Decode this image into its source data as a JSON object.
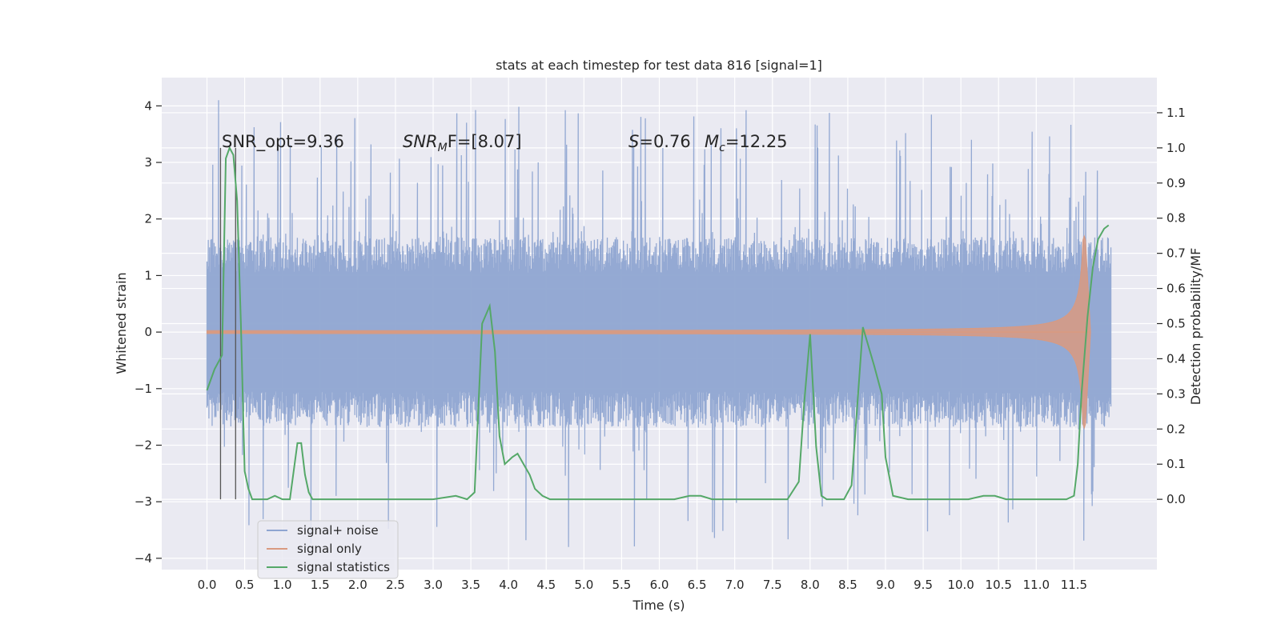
{
  "chart_data": {
    "type": "line",
    "title": "stats at each timestep for test data 816 [signal=1]",
    "xlabel": "Time (s)",
    "ylabel": "Whitened strain",
    "ylabel_right": "Detection probability/MF",
    "xlim": [
      -0.6,
      12.6
    ],
    "ylim": [
      -4.2,
      4.5
    ],
    "ylim_right": [
      -0.2,
      1.2
    ],
    "x_ticks": [
      0.0,
      0.5,
      1.0,
      1.5,
      2.0,
      2.5,
      3.0,
      3.5,
      4.0,
      4.5,
      5.0,
      5.5,
      6.0,
      6.5,
      7.0,
      7.5,
      8.0,
      8.5,
      9.0,
      9.5,
      10.0,
      10.5,
      11.0,
      11.5
    ],
    "x_tick_labels": [
      "0.0",
      "0.5",
      "1.0",
      "1.5",
      "2.0",
      "2.5",
      "3.0",
      "3.5",
      "4.0",
      "4.5",
      "5.0",
      "5.5",
      "6.0",
      "6.5",
      "7.0",
      "7.5",
      "8.0",
      "8.5",
      "9.0",
      "9.5",
      "10.0",
      "10.5",
      "11.0",
      "11.5"
    ],
    "y_ticks": [
      4,
      3,
      2,
      1,
      0,
      -1,
      -2,
      -3,
      -4
    ],
    "y_tick_labels": [
      "4",
      "3",
      "2",
      "1",
      "0",
      "−1",
      "−2",
      "−3",
      "−4"
    ],
    "y_ticks_right": [
      1.1,
      1.0,
      0.9,
      0.8,
      0.7,
      0.6,
      0.5,
      0.4,
      0.3,
      0.2,
      0.1,
      0.0
    ],
    "y_tick_labels_right": [
      "1.1",
      "1.0",
      "0.9",
      "0.8",
      "0.7",
      "0.6",
      "0.5",
      "0.4",
      "0.3",
      "0.2",
      "0.1",
      "0.0"
    ],
    "grid": true,
    "legend_position": "lower-left",
    "annotations": {
      "snr_opt": "SNR_opt=9.36",
      "snr_mf_sym": "SNR",
      "snr_mf_sub": "M",
      "snr_mf_rest": "F=[8.07]",
      "s_sym": "S",
      "s_rest": "=0.76",
      "mc_sym": "M",
      "mc_sub": "c",
      "mc_rest": "=12.25"
    },
    "vertical_markers_x": [
      0.18,
      0.38
    ],
    "series": [
      {
        "name": "signal+ noise",
        "color": "#8fa5d1",
        "axis": "left",
        "t_start": 0.0,
        "t_end": 11.99,
        "core_amplitude": 1.4,
        "burst_max": 4.1,
        "burst_min": -3.8
      },
      {
        "name": "signal only",
        "color": "#d99a80",
        "axis": "left",
        "t_start": 0.0,
        "t_end": 11.72,
        "peak_time": 11.65,
        "peak_amplitude": 1.7
      },
      {
        "name": "signal statistics",
        "color": "#55a868",
        "axis": "right",
        "x": [
          0.0,
          0.1,
          0.2,
          0.25,
          0.3,
          0.35,
          0.4,
          0.45,
          0.5,
          0.55,
          0.6,
          0.7,
          0.8,
          0.9,
          1.0,
          1.1,
          1.2,
          1.25,
          1.3,
          1.35,
          1.4,
          1.45,
          1.5,
          1.6,
          1.8,
          2.0,
          2.2,
          2.5,
          2.8,
          3.0,
          3.3,
          3.45,
          3.55,
          3.65,
          3.75,
          3.82,
          3.88,
          3.95,
          4.05,
          4.12,
          4.2,
          4.28,
          4.35,
          4.45,
          4.55,
          4.7,
          4.9,
          5.2,
          5.5,
          5.7,
          5.9,
          6.2,
          6.4,
          6.55,
          6.7,
          6.9,
          7.1,
          7.3,
          7.5,
          7.7,
          7.85,
          7.92,
          8.0,
          8.08,
          8.15,
          8.22,
          8.3,
          8.45,
          8.55,
          8.62,
          8.7,
          8.85,
          8.95,
          9.0,
          9.1,
          9.3,
          9.6,
          9.9,
          10.1,
          10.3,
          10.45,
          10.6,
          10.8,
          11.0,
          11.2,
          11.4,
          11.5,
          11.55,
          11.6,
          11.68,
          11.75,
          11.82,
          11.9,
          11.96
        ],
        "y": [
          0.31,
          0.37,
          0.41,
          0.97,
          1.0,
          0.98,
          0.85,
          0.5,
          0.08,
          0.03,
          0.0,
          0.0,
          0.0,
          0.01,
          0.0,
          0.0,
          0.16,
          0.16,
          0.07,
          0.02,
          0.0,
          0.0,
          0.0,
          0.0,
          0.0,
          0.0,
          0.0,
          0.0,
          0.0,
          0.0,
          0.01,
          0.0,
          0.02,
          0.5,
          0.55,
          0.42,
          0.18,
          0.1,
          0.12,
          0.13,
          0.1,
          0.07,
          0.03,
          0.01,
          0.0,
          0.0,
          0.0,
          0.0,
          0.0,
          0.0,
          0.0,
          0.0,
          0.01,
          0.01,
          0.0,
          0.0,
          0.0,
          0.0,
          0.0,
          0.0,
          0.05,
          0.27,
          0.47,
          0.15,
          0.01,
          0.0,
          0.0,
          0.0,
          0.04,
          0.25,
          0.49,
          0.38,
          0.3,
          0.12,
          0.01,
          0.0,
          0.0,
          0.0,
          0.0,
          0.01,
          0.01,
          0.0,
          0.0,
          0.0,
          0.0,
          0.0,
          0.01,
          0.1,
          0.3,
          0.52,
          0.66,
          0.74,
          0.77,
          0.78
        ]
      }
    ]
  }
}
